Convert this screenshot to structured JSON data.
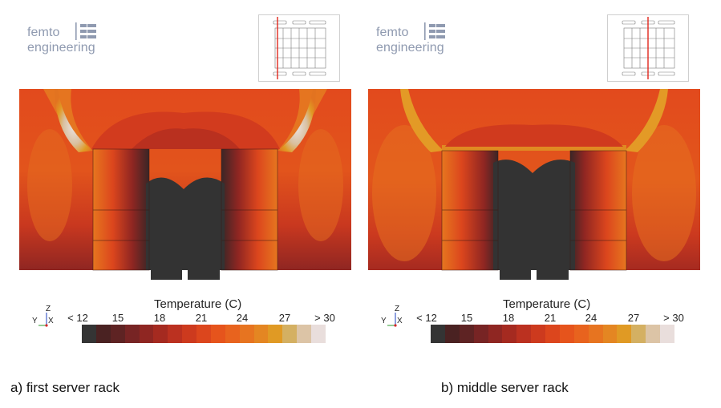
{
  "logo": {
    "line1": "femto",
    "line2": "engineering"
  },
  "colorbar": {
    "title": "Temperature (C)",
    "ticks": [
      "< 12",
      "15",
      "18",
      "21",
      "24",
      "27",
      "> 30"
    ],
    "colors": [
      "#343434",
      "#4a2222",
      "#5e2323",
      "#772424",
      "#8f2622",
      "#a52a20",
      "#bb3120",
      "#cd3a1e",
      "#dc461d",
      "#e6541c",
      "#e8631e",
      "#e77420",
      "#e48622",
      "#e09a24",
      "#d4b062",
      "#dcc4a6",
      "#e9dedc"
    ]
  },
  "axes_triad": {
    "up": "Z",
    "left": "Y",
    "out": "X"
  },
  "panels": [
    {
      "caption": "a) first server rack"
    },
    {
      "caption": "b) middle server rack"
    }
  ]
}
